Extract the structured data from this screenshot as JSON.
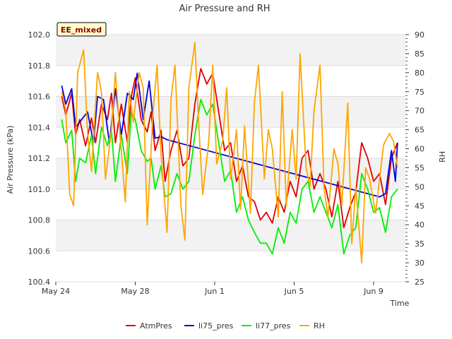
{
  "chart_data": {
    "type": "line",
    "title": "Air Pressure and RH",
    "xlabel": "Time",
    "ylabel": "Air Pressure (kPa)",
    "y2label": "RH",
    "tag": "EE_mixed",
    "x_ticks": [
      {
        "day": 0,
        "label": "May 24"
      },
      {
        "day": 4,
        "label": "May 28"
      },
      {
        "day": 8,
        "label": "Jun 1"
      },
      {
        "day": 12,
        "label": "Jun 5"
      },
      {
        "day": 16,
        "label": "Jun 9"
      }
    ],
    "xlim": [
      0,
      17.6
    ],
    "ylim": [
      100.4,
      102.0
    ],
    "y2lim": [
      25,
      90
    ],
    "y_ticks": [
      "100.4",
      "100.6",
      "100.8",
      "101.0",
      "101.2",
      "101.4",
      "101.6",
      "101.8",
      "102.0"
    ],
    "y2_ticks": [
      "25",
      "30",
      "35",
      "40",
      "45",
      "50",
      "55",
      "60",
      "65",
      "70",
      "75",
      "80",
      "85",
      "90"
    ],
    "grid": true,
    "legend_position": "bottom",
    "colors": {
      "AtmPres": "#e00000",
      "li75_pres": "#0000dd",
      "li77_pres": "#00ee00",
      "RH": "#ffa500"
    },
    "series": [
      {
        "name": "AtmPres",
        "axis": "left",
        "x": [
          0.3,
          0.5,
          0.8,
          1.0,
          1.2,
          1.5,
          1.8,
          2.0,
          2.3,
          2.6,
          2.8,
          3.0,
          3.3,
          3.6,
          3.8,
          4.0,
          4.3,
          4.6,
          4.8,
          5.0,
          5.3,
          5.5,
          5.8,
          6.1,
          6.4,
          6.7,
          7.0,
          7.3,
          7.6,
          7.9,
          8.2,
          8.5,
          8.8,
          9.1,
          9.4,
          9.7,
          10.0,
          10.3,
          10.6,
          10.9,
          11.2,
          11.5,
          11.8,
          12.1,
          12.4,
          12.7,
          13.0,
          13.3,
          13.6,
          13.9,
          14.2,
          14.5,
          14.8,
          15.1,
          15.4,
          15.7,
          16.0,
          16.3,
          16.6,
          16.9,
          17.2
        ],
        "values": [
          101.6,
          101.48,
          101.62,
          101.35,
          101.45,
          101.28,
          101.46,
          101.3,
          101.55,
          101.45,
          101.62,
          101.3,
          101.55,
          101.3,
          101.6,
          101.72,
          101.45,
          101.37,
          101.5,
          101.25,
          101.38,
          101.05,
          101.25,
          101.38,
          101.15,
          101.2,
          101.55,
          101.78,
          101.68,
          101.75,
          101.5,
          101.25,
          101.3,
          101.05,
          101.15,
          100.95,
          100.92,
          100.8,
          100.85,
          100.78,
          100.95,
          100.85,
          101.05,
          100.95,
          101.2,
          101.25,
          101.0,
          101.1,
          101.0,
          100.82,
          101.05,
          100.75,
          100.88,
          100.98,
          101.3,
          101.2,
          101.05,
          101.1,
          100.9,
          101.2,
          101.3
        ]
      },
      {
        "name": "li75_pres",
        "axis": "left",
        "x": [
          0.3,
          0.5,
          0.8,
          1.0,
          1.3,
          1.6,
          1.9,
          2.1,
          2.4,
          2.7,
          3.0,
          3.3,
          3.6,
          3.9,
          4.1,
          4.4,
          4.7,
          5.0,
          5.3,
          5.6,
          16.3,
          16.6,
          16.9,
          17.1,
          17.2
        ],
        "values": [
          101.67,
          101.55,
          101.65,
          101.4,
          101.45,
          101.5,
          101.3,
          101.6,
          101.58,
          101.3,
          101.65,
          101.35,
          101.62,
          101.58,
          101.75,
          101.45,
          101.7,
          101.33,
          101.34,
          101.32,
          100.95,
          100.97,
          101.25,
          101.05,
          101.3
        ]
      },
      {
        "name": "li77_pres",
        "axis": "left",
        "x": [
          0.3,
          0.5,
          0.8,
          1.0,
          1.2,
          1.5,
          1.8,
          2.0,
          2.3,
          2.6,
          2.8,
          3.0,
          3.3,
          3.6,
          3.8,
          4.0,
          4.3,
          4.6,
          4.8,
          5.0,
          5.3,
          5.5,
          5.8,
          6.1,
          6.4,
          6.7,
          7.0,
          7.3,
          7.6,
          7.9,
          8.2,
          8.5,
          8.8,
          9.1,
          9.4,
          9.7,
          10.0,
          10.3,
          10.6,
          10.9,
          11.2,
          11.5,
          11.8,
          12.1,
          12.4,
          12.7,
          13.0,
          13.3,
          13.6,
          13.9,
          14.2,
          14.5,
          14.8,
          15.1,
          15.4,
          15.7,
          16.0,
          16.3,
          16.6,
          16.9,
          17.2
        ],
        "values": [
          101.45,
          101.3,
          101.38,
          101.05,
          101.2,
          101.17,
          101.35,
          101.1,
          101.4,
          101.28,
          101.38,
          101.05,
          101.35,
          101.1,
          101.5,
          101.45,
          101.25,
          101.18,
          101.2,
          101.0,
          101.15,
          100.95,
          100.97,
          101.1,
          101.0,
          101.05,
          101.35,
          101.58,
          101.48,
          101.55,
          101.3,
          101.05,
          101.12,
          100.85,
          100.95,
          100.8,
          100.72,
          100.65,
          100.65,
          100.58,
          100.75,
          100.65,
          100.85,
          100.78,
          101.0,
          101.05,
          100.85,
          100.95,
          100.85,
          100.75,
          100.9,
          100.58,
          100.7,
          100.75,
          101.1,
          101.0,
          100.85,
          100.88,
          100.72,
          100.95,
          101.0
        ]
      },
      {
        "name": "RH",
        "axis": "right",
        "x": [
          0.3,
          0.5,
          0.7,
          0.9,
          1.1,
          1.4,
          1.6,
          1.8,
          2.1,
          2.3,
          2.5,
          2.8,
          3.0,
          3.2,
          3.5,
          3.7,
          3.9,
          4.2,
          4.4,
          4.6,
          4.9,
          5.1,
          5.3,
          5.6,
          5.8,
          6.0,
          6.3,
          6.5,
          6.7,
          7.0,
          7.2,
          7.4,
          7.7,
          7.9,
          8.1,
          8.4,
          8.6,
          8.8,
          9.1,
          9.3,
          9.5,
          9.8,
          10.0,
          10.2,
          10.5,
          10.7,
          10.9,
          11.2,
          11.4,
          11.6,
          11.9,
          12.1,
          12.3,
          12.6,
          12.8,
          13.0,
          13.3,
          13.5,
          13.7,
          14.0,
          14.2,
          14.4,
          14.7,
          14.9,
          15.1,
          15.4,
          15.6,
          15.8,
          16.1,
          16.3,
          16.5,
          16.8,
          17.0,
          17.2
        ],
        "values": [
          75,
          70,
          48,
          45,
          80,
          86,
          64,
          54,
          80,
          75,
          52,
          65,
          80,
          66,
          46,
          75,
          67,
          80,
          76,
          40,
          70,
          82,
          58,
          38,
          73,
          82,
          45,
          36,
          76,
          88,
          66,
          48,
          62,
          82,
          56,
          62,
          76,
          52,
          65,
          44,
          66,
          43,
          72,
          82,
          52,
          65,
          60,
          42,
          75,
          45,
          65,
          52,
          85,
          55,
          50,
          70,
          82,
          50,
          42,
          60,
          56,
          45,
          72,
          35,
          50,
          30,
          55,
          52,
          43,
          52,
          61,
          64,
          62,
          55
        ]
      }
    ]
  }
}
